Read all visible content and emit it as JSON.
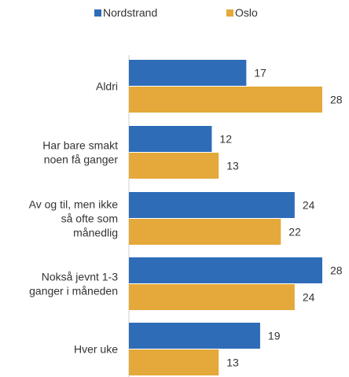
{
  "chart_data": {
    "type": "bar",
    "orientation": "horizontal",
    "categories": [
      [
        "Aldri"
      ],
      [
        "Har bare smakt",
        "noen få ganger"
      ],
      [
        "Av og til, men ikke",
        "så ofte som",
        "månedlig"
      ],
      [
        "Nokså jevnt 1-3",
        "ganger i måneden"
      ],
      [
        "Hver uke"
      ]
    ],
    "series": [
      {
        "name": "Nordstrand",
        "color": "#2e6cb8",
        "values": [
          17,
          12,
          24,
          28,
          19
        ]
      },
      {
        "name": "Oslo",
        "color": "#e4a93a",
        "values": [
          28,
          13,
          22,
          24,
          13
        ]
      }
    ],
    "xlim": [
      0,
      28
    ],
    "grid": false,
    "legend_position": "top"
  }
}
